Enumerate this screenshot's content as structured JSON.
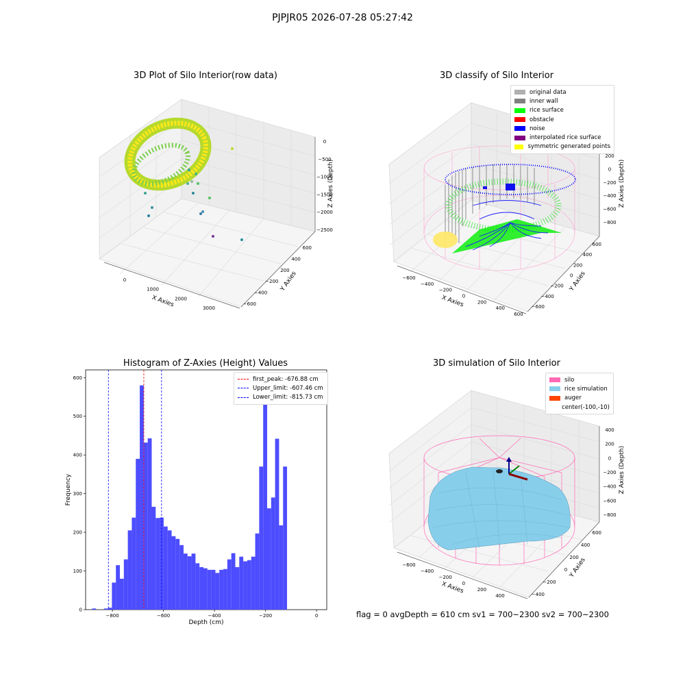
{
  "suptitle": "PJPJR05 2026-07-28 05:27:42",
  "footer": "flag = 0     avgDepth = 610 cm  sv1 = 700~2300  sv2 = 700~2300",
  "colors": {
    "original": "#b0b0b0",
    "inner_wall": "#808080",
    "rice_surface": "#00ff00",
    "obstacle": "#ff0000",
    "noise": "#0000ff",
    "interp_surface": "#800080",
    "symmetric": "#ffff00",
    "silo": "#ff69b4",
    "rice_sim": "#87ceeb",
    "auger": "#ff4500",
    "hist_bar": "#4d4dff",
    "peak_line": "#ff0000",
    "limit_line": "#0000ff"
  },
  "chart_data": [
    {
      "type": "scatter",
      "title": "3D Plot of Silo Interior(row data)",
      "xlabel": "X Axies",
      "ylabel": "Y Axies",
      "zlabel": "Z Axies (Depth)",
      "x_ticks": [
        "0",
        "1000",
        "2000",
        "3000"
      ],
      "y_ticks": [
        "600",
        "400",
        "200",
        "−200",
        "−400",
        "−600"
      ],
      "z_ticks": [
        "0",
        "−500",
        "−1000",
        "−1500",
        "−2000",
        "−2500"
      ]
    },
    {
      "type": "scatter",
      "title": "3D classify of Silo Interior",
      "xlabel": "X Axies",
      "ylabel": "Y Axies",
      "zlabel": "Z Axies (Depth)",
      "x_ticks": [
        "−600",
        "−400",
        "−200",
        "0",
        "200",
        "400",
        "600"
      ],
      "y_ticks": [
        "600",
        "400",
        "200",
        "0",
        "−200",
        "−400",
        "−600"
      ],
      "z_ticks": [
        "200",
        "0",
        "−200",
        "−400",
        "−600",
        "−800"
      ],
      "legend": [
        {
          "label": "original data",
          "color": "#b0b0b0"
        },
        {
          "label": "inner wall",
          "color": "#808080"
        },
        {
          "label": "rice surface",
          "color": "#00ff00"
        },
        {
          "label": "obstacle",
          "color": "#ff0000"
        },
        {
          "label": "noise",
          "color": "#0000ff"
        },
        {
          "label": "interpolated rice surface",
          "color": "#800080"
        },
        {
          "label": "symmetric generated points",
          "color": "#ffff00"
        }
      ],
      "legend_loc": "top-right"
    },
    {
      "type": "bar",
      "title": "Histogram of Z-Axies (Height) Values",
      "xlabel": "Depth (cm)",
      "ylabel": "Frequency",
      "xlim": [
        -905,
        40
      ],
      "ylim": [
        0,
        620
      ],
      "x_ticks": [
        -800,
        -600,
        -400,
        -200,
        0
      ],
      "x_tick_labels": [
        "−800",
        "−600",
        "−400",
        "−200",
        "0"
      ],
      "y_ticks": [
        0,
        100,
        200,
        300,
        400,
        500,
        600
      ],
      "bin_start": -880,
      "bin_width": 15.6,
      "values": [
        3,
        0,
        0,
        3,
        5,
        70,
        115,
        80,
        130,
        205,
        238,
        390,
        580,
        432,
        443,
        266,
        237,
        238,
        215,
        205,
        190,
        183,
        167,
        145,
        138,
        145,
        120,
        110,
        107,
        103,
        103,
        95,
        103,
        105,
        130,
        146,
        110,
        137,
        125,
        128,
        137,
        197,
        370,
        580,
        262,
        290,
        442,
        218,
        370
      ],
      "lines": [
        {
          "label": "first_peak: -676.88 cm",
          "x": -676.88,
          "color": "#ff0000"
        },
        {
          "label": "Upper_limit: -607.46 cm",
          "x": -607.46,
          "color": "#0000ff"
        },
        {
          "label": "Lower_limit: -815.73 cm",
          "x": -815.73,
          "color": "#0000ff"
        }
      ],
      "legend_loc": "top-right"
    },
    {
      "type": "scatter",
      "title": "3D simulation of Silo Interior",
      "xlabel": "X Axies",
      "ylabel": "Y Axies",
      "zlabel": "Z Axies (Depth)",
      "x_ticks": [
        "−600",
        "−400",
        "−200",
        "0",
        "200",
        "400"
      ],
      "y_ticks": [
        "600",
        "400",
        "200",
        "0",
        "−200",
        "−400"
      ],
      "z_ticks": [
        "400",
        "200",
        "0",
        "−200",
        "−400",
        "−600",
        "−800"
      ],
      "legend": [
        {
          "label": "silo",
          "color": "#ff69b4"
        },
        {
          "label": "rice simulation",
          "color": "#87ceeb"
        },
        {
          "label": "auger",
          "color": "#ff4500"
        },
        {
          "label": "center(-100,-10)",
          "color": ""
        }
      ],
      "legend_loc": "top-right"
    }
  ]
}
